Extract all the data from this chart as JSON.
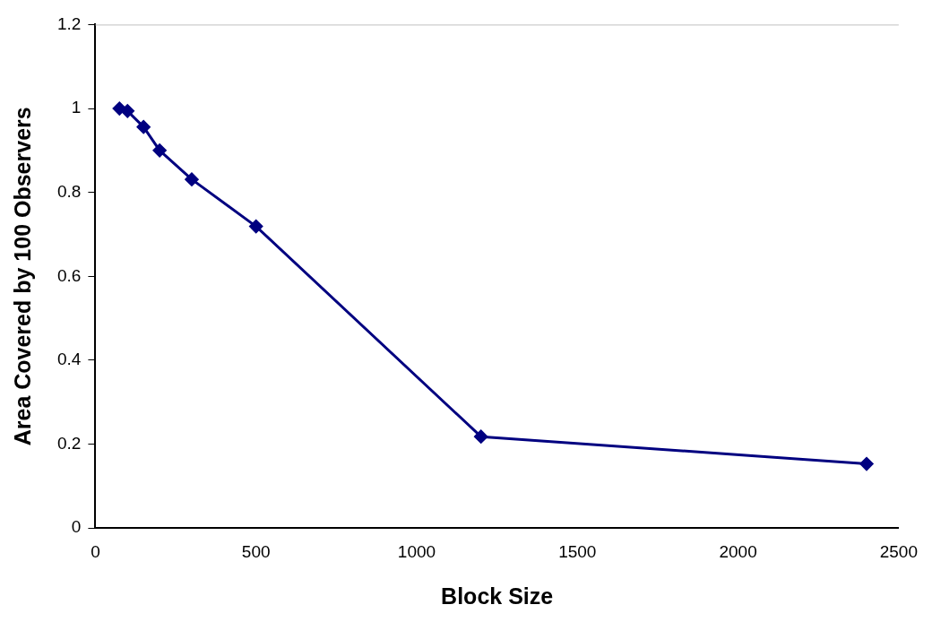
{
  "chart_data": {
    "type": "line",
    "xlabel": "Block Size",
    "ylabel": "Area Covered by 100 Observers",
    "x": [
      75,
      100,
      150,
      200,
      300,
      500,
      1200,
      2400
    ],
    "series": [
      {
        "color": "#000080",
        "values": [
          1.0,
          0.994,
          0.956,
          0.9,
          0.831,
          0.719,
          0.218,
          0.153
        ]
      }
    ],
    "xlim": [
      0,
      2500
    ],
    "xticks": [
      0,
      500,
      1000,
      1500,
      2000,
      2500
    ],
    "ylim": [
      0,
      1.2
    ],
    "yticks": [
      0,
      0.2,
      0.4,
      0.6,
      0.8,
      1,
      1.2
    ],
    "grid": false,
    "legend": false,
    "marker": "diamond",
    "line_style": "solid"
  }
}
